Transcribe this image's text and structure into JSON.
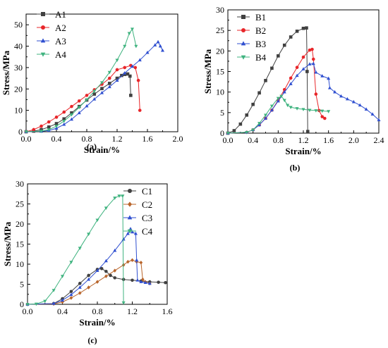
{
  "chart_data": [
    {
      "type": "line",
      "panel_label": "(a)",
      "xlabel": "Strain/%",
      "ylabel": "Stress/MPa",
      "xlim": [
        0,
        2.0
      ],
      "ylim": [
        0,
        55
      ],
      "xticks": [
        0.0,
        0.4,
        0.8,
        1.2,
        1.6,
        2.0
      ],
      "xtick_labels": [
        "0.0",
        "0.4",
        "0.8",
        "1.2",
        "1.6",
        "2.0"
      ],
      "yticks": [
        0,
        10,
        20,
        30,
        40,
        50
      ],
      "ytick_labels": [
        "0",
        "10",
        "20",
        "30",
        "40",
        "50"
      ],
      "legend_position": "top-left",
      "series": [
        {
          "name": "A1",
          "color": "#404040",
          "marker": "square",
          "x": [
            0,
            0.1,
            0.2,
            0.3,
            0.4,
            0.5,
            0.6,
            0.7,
            0.8,
            0.9,
            1.0,
            1.1,
            1.2,
            1.26,
            1.3,
            1.34,
            1.37,
            1.38
          ],
          "y": [
            0,
            0.3,
            1.0,
            2.2,
            3.8,
            6.0,
            8.8,
            11.8,
            14.8,
            17.6,
            20.2,
            22.6,
            25.0,
            26.3,
            26.8,
            27.0,
            26.0,
            17.0
          ]
        },
        {
          "name": "A2",
          "color": "#e8262a",
          "marker": "circle",
          "x": [
            0,
            0.1,
            0.2,
            0.3,
            0.4,
            0.5,
            0.6,
            0.7,
            0.8,
            0.9,
            1.0,
            1.1,
            1.2,
            1.3,
            1.38,
            1.44,
            1.48,
            1.5
          ],
          "y": [
            0,
            1.0,
            2.6,
            4.6,
            6.8,
            9.2,
            11.8,
            14.4,
            17.0,
            19.6,
            22.2,
            25.0,
            29.0,
            30.0,
            31.0,
            30.0,
            24.0,
            10.0
          ]
        },
        {
          "name": "A3",
          "color": "#2f4fd0",
          "marker": "triangle-up",
          "x": [
            0,
            0.2,
            0.3,
            0.4,
            0.5,
            0.6,
            0.7,
            0.8,
            0.9,
            1.0,
            1.1,
            1.2,
            1.3,
            1.4,
            1.5,
            1.6,
            1.7,
            1.74,
            1.77,
            1.8
          ],
          "y": [
            0,
            0.2,
            0.6,
            1.6,
            3.4,
            5.8,
            8.8,
            12.0,
            15.2,
            18.2,
            21.0,
            24.0,
            27.4,
            30.5,
            33.5,
            37.0,
            40.5,
            42.0,
            40.0,
            38.0
          ]
        },
        {
          "name": "A4",
          "color": "#3fb37f",
          "marker": "triangle-down",
          "x": [
            0,
            0.2,
            0.3,
            0.4,
            0.5,
            0.6,
            0.7,
            0.8,
            0.9,
            1.0,
            1.1,
            1.2,
            1.3,
            1.36,
            1.4,
            1.45
          ],
          "y": [
            0,
            0.3,
            1.0,
            2.6,
            5.0,
            8.0,
            11.4,
            15.0,
            19.0,
            23.0,
            27.8,
            33.5,
            40.0,
            46.0,
            48.0,
            40.0
          ]
        }
      ]
    },
    {
      "type": "line",
      "panel_label": "(b)",
      "xlabel": "Strain/%",
      "ylabel": "Stress/MPa",
      "xlim": [
        0,
        2.4
      ],
      "ylim": [
        0,
        30
      ],
      "xticks": [
        0.0,
        0.4,
        0.8,
        1.2,
        1.6,
        2.0,
        2.4
      ],
      "xtick_labels": [
        "0.0",
        "0.4",
        "0.8",
        "1.2",
        "1.6",
        "2.0",
        "2.4"
      ],
      "yticks": [
        0,
        5,
        10,
        15,
        20,
        25,
        30
      ],
      "ytick_labels": [
        "0",
        "5",
        "10",
        "15",
        "20",
        "25",
        "30"
      ],
      "legend_position": "top-left",
      "series": [
        {
          "name": "B1",
          "color": "#404040",
          "marker": "square",
          "x": [
            0,
            0.1,
            0.2,
            0.3,
            0.4,
            0.5,
            0.6,
            0.7,
            0.8,
            0.9,
            1.0,
            1.1,
            1.2,
            1.25,
            1.26,
            1.27
          ],
          "y": [
            0,
            0.6,
            2.2,
            4.4,
            7.0,
            9.8,
            12.8,
            15.8,
            18.8,
            21.4,
            23.4,
            24.8,
            25.5,
            25.6,
            15.0,
            0.4
          ]
        },
        {
          "name": "B2",
          "color": "#e8262a",
          "marker": "circle",
          "x": [
            0,
            0.3,
            0.4,
            0.5,
            0.6,
            0.7,
            0.8,
            0.9,
            1.0,
            1.1,
            1.2,
            1.3,
            1.34,
            1.36,
            1.4,
            1.45,
            1.5,
            1.54
          ],
          "y": [
            0,
            0.2,
            0.8,
            2.0,
            3.6,
            5.6,
            8.0,
            10.6,
            13.4,
            16.0,
            18.5,
            20.2,
            20.4,
            18.0,
            9.5,
            5.5,
            4.0,
            3.6
          ]
        },
        {
          "name": "B3",
          "color": "#2f4fd0",
          "marker": "triangle-up",
          "x": [
            0,
            0.3,
            0.4,
            0.5,
            0.6,
            0.7,
            0.8,
            0.9,
            1.0,
            1.1,
            1.2,
            1.3,
            1.36,
            1.4,
            1.5,
            1.6,
            1.62,
            1.7,
            1.8,
            1.9,
            2.0,
            2.1,
            2.2,
            2.3,
            2.4
          ],
          "y": [
            0,
            0.2,
            0.8,
            2.0,
            3.6,
            5.6,
            7.8,
            10.0,
            12.0,
            14.0,
            15.6,
            16.8,
            16.9,
            14.8,
            13.9,
            13.3,
            11.0,
            10.0,
            9.0,
            8.3,
            7.6,
            6.8,
            5.8,
            4.6,
            3.2
          ]
        },
        {
          "name": "B4",
          "color": "#3fb37f",
          "marker": "triangle-down",
          "x": [
            0,
            0.3,
            0.4,
            0.5,
            0.6,
            0.7,
            0.8,
            0.85,
            0.9,
            0.95,
            1.0,
            1.1,
            1.2,
            1.3,
            1.4,
            1.5,
            1.6
          ],
          "y": [
            0,
            0.2,
            0.8,
            2.4,
            4.4,
            6.6,
            8.5,
            9.0,
            8.0,
            6.8,
            6.3,
            6.0,
            5.8,
            5.6,
            5.5,
            5.4,
            5.3
          ]
        }
      ]
    },
    {
      "type": "line",
      "panel_label": "(c)",
      "xlabel": "Strain/%",
      "ylabel": "Stress/MPa",
      "xlim": [
        0,
        1.6
      ],
      "ylim": [
        0,
        30
      ],
      "xticks": [
        0.0,
        0.4,
        0.8,
        1.2,
        1.6
      ],
      "xtick_labels": [
        "0.0",
        "0.4",
        "0.8",
        "1.2",
        "1.6"
      ],
      "yticks": [
        0,
        5,
        10,
        15,
        20,
        25,
        30
      ],
      "ytick_labels": [
        "0",
        "5",
        "10",
        "15",
        "20",
        "25",
        "30"
      ],
      "legend_position": "top-right",
      "series": [
        {
          "name": "C1",
          "color": "#404040",
          "marker": "circle",
          "x": [
            0,
            0.3,
            0.4,
            0.5,
            0.6,
            0.7,
            0.8,
            0.85,
            0.9,
            0.95,
            1.0,
            1.1,
            1.2,
            1.3,
            1.4,
            1.5,
            1.58
          ],
          "y": [
            0,
            0.2,
            1.4,
            3.2,
            5.2,
            7.2,
            8.7,
            8.9,
            8.2,
            7.2,
            6.6,
            6.2,
            6.0,
            5.8,
            5.6,
            5.5,
            5.4
          ]
        },
        {
          "name": "C2",
          "color": "#b8642a",
          "marker": "diamond",
          "x": [
            0,
            0.3,
            0.4,
            0.5,
            0.6,
            0.7,
            0.8,
            0.9,
            1.0,
            1.1,
            1.15,
            1.2,
            1.25,
            1.3,
            1.32,
            1.35,
            1.4
          ],
          "y": [
            0,
            0.1,
            0.6,
            1.6,
            2.8,
            4.2,
            5.6,
            7.0,
            8.4,
            9.8,
            10.6,
            11.0,
            10.6,
            10.4,
            6.2,
            5.6,
            5.2
          ]
        },
        {
          "name": "C3",
          "color": "#2f4fd0",
          "marker": "triangle-up",
          "x": [
            0,
            0.3,
            0.4,
            0.5,
            0.6,
            0.7,
            0.8,
            0.9,
            1.0,
            1.1,
            1.15,
            1.18,
            1.2,
            1.24,
            1.25,
            1.26,
            1.3,
            1.35,
            1.4
          ],
          "y": [
            0,
            0.2,
            1.0,
            2.4,
            4.2,
            6.2,
            8.4,
            10.8,
            13.4,
            16.2,
            17.6,
            18.8,
            18.0,
            17.6,
            11.0,
            6.0,
            5.6,
            5.4,
            5.2
          ]
        },
        {
          "name": "C4",
          "color": "#3fb37f",
          "marker": "triangle-down",
          "x": [
            0,
            0.1,
            0.2,
            0.3,
            0.4,
            0.5,
            0.6,
            0.7,
            0.8,
            0.9,
            1.0,
            1.05,
            1.09,
            1.1
          ],
          "y": [
            0,
            0.1,
            0.8,
            3.5,
            7.0,
            10.5,
            14.0,
            17.5,
            21.0,
            24.0,
            26.5,
            27.0,
            27.0,
            0.4
          ]
        }
      ]
    }
  ]
}
